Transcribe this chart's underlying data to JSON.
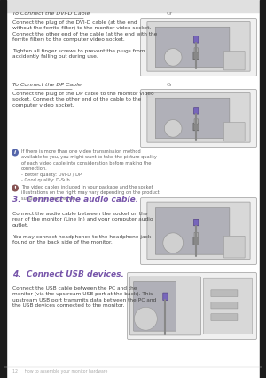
{
  "page_bg": "#ffffff",
  "text_color": "#444444",
  "small_text_color": "#666666",
  "title_underline_color": "#555555",
  "purple_title_color": "#7755aa",
  "section1_title": "To Connect the DVI-D Cable",
  "section1_body": "Connect the plug of the DVI-D cable (at the end\nwithout the ferrite filter) to the monitor video socket.\nConnect the other end of the cable (at the end with the\nferrite filter) to the computer video socket.\n\nTighten all finger screws to prevent the plugs from\naccidently falling out during use.",
  "or1": "Or",
  "section2_title": "To Connect the DP Cable",
  "section2_body": "Connect the plug of the DP cable to the monitor video\nsocket. Connect the other end of the cable to the\ncomputer video socket.",
  "info1_body": "If there is more than one video transmission method\navailable to you, you might want to take the picture quality\nof each video cable into consideration before making the\nconnection.\n- Better quality: DVI-D / DP\n- Good quality: D-Sub",
  "info2_body": "The video cables included in your package and the socket\nillustrations on the right may vary depending on the product\nsupplied for your region.",
  "or2": "Or",
  "section3_title": "3.  Connect the audio cable.",
  "section3_body": "Connect the audio cable between the socket on the\nrear of the monitor (Line In) and your computer audio\noutlet.\n\nYou may connect headphones to the headphone jack\nfound on the back side of the monitor.",
  "section4_title": "4.  Connect USB devices.",
  "section4_body": "Connect the USB cable between the PC and the\nmonitor (via the upstream USB port at the back). This\nupstream USB port transmits data between the PC and\nthe USB devices connected to the monitor.",
  "footer_page": "12",
  "footer_text": "     How to assemble your monitor hardware",
  "info_icon_color": "#5566aa",
  "note_icon_color": "#885555",
  "connector_purple": "#7766bb",
  "monitor_light": "#d8d8d8",
  "monitor_dark": "#b0b0b8",
  "monitor_frame": "#c0c0c8",
  "monitor_inner": "#888898"
}
